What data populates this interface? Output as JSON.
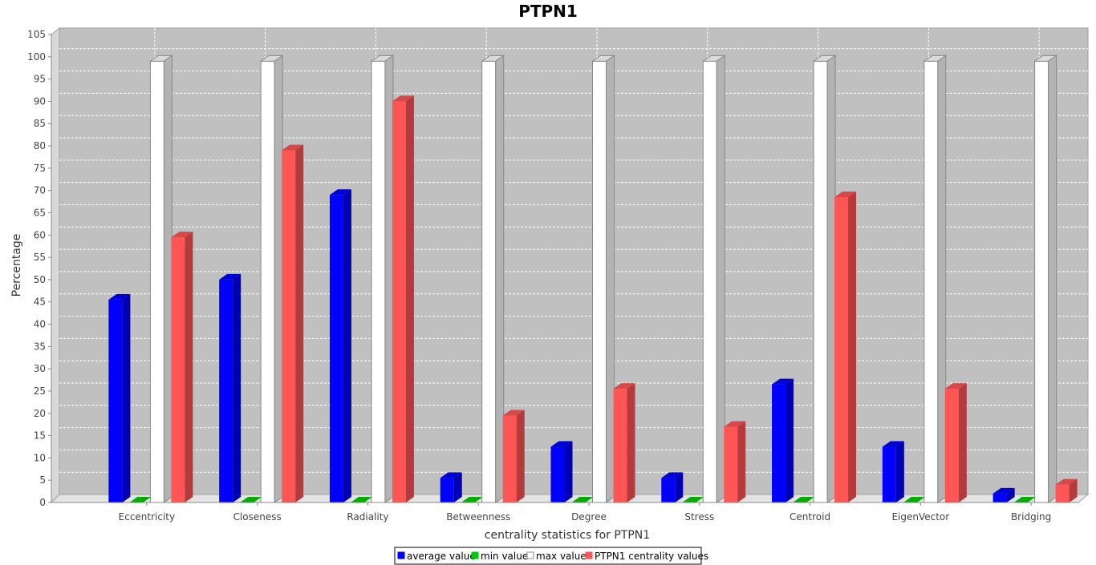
{
  "chart_data": {
    "type": "bar",
    "title": "PTPN1",
    "xlabel": "centrality statistics for PTPN1",
    "ylabel": "Percentage",
    "ylim": [
      0,
      105
    ],
    "yticks": [
      0,
      5,
      10,
      15,
      20,
      25,
      30,
      35,
      40,
      45,
      50,
      55,
      60,
      65,
      70,
      75,
      80,
      85,
      90,
      95,
      100,
      105
    ],
    "grid": true,
    "legend_position": "bottom",
    "categories": [
      "Eccentricity",
      "Closeness",
      "Radiality",
      "Betweenness",
      "Degree",
      "Stress",
      "Centroid",
      "EigenVector",
      "Bridging"
    ],
    "series": [
      {
        "name": "average value",
        "color": "#0000ff",
        "values": [
          45.5,
          50,
          69,
          5.5,
          12.5,
          5.5,
          26.5,
          12.5,
          2
        ]
      },
      {
        "name": "min value",
        "color": "#00cc00",
        "values": [
          0,
          0,
          0,
          0,
          0,
          0,
          0,
          0,
          0
        ]
      },
      {
        "name": "max value",
        "color": "#ffffff",
        "values": [
          99,
          99,
          99,
          99,
          99,
          99,
          99,
          99,
          99
        ]
      },
      {
        "name": "PTPN1 centrality values",
        "color": "#ff5555",
        "values": [
          59.5,
          79,
          90,
          19.5,
          25.5,
          17,
          68.5,
          25.5,
          4
        ]
      }
    ]
  }
}
